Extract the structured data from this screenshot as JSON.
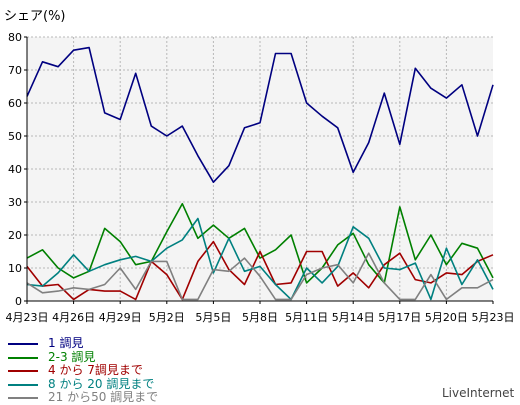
{
  "chart_data": {
    "type": "line",
    "ylabel": "シェア(%)",
    "ylim": [
      0,
      80
    ],
    "yticks": [
      0,
      10,
      20,
      30,
      40,
      50,
      60,
      70,
      80
    ],
    "x": [
      "4月23日",
      "4月24日",
      "4月25日",
      "4月26日",
      "4月27日",
      "4月28日",
      "4月29日",
      "4月30日",
      "5月1日",
      "5月2日",
      "5月3日",
      "5月4日",
      "5月5日",
      "5月6日",
      "5月7日",
      "5月8日",
      "5月9日",
      "5月10日",
      "5月11日",
      "5月12日",
      "5月13日",
      "5月14日",
      "5月15日",
      "5月16日",
      "5月17日",
      "5月18日",
      "5月19日",
      "5月20日",
      "5月21日",
      "5月22日",
      "5月23日"
    ],
    "xticks": [
      "4月23日",
      "4月26日",
      "4月29日",
      "5月2日",
      "5月5日",
      "5月8日",
      "5月11日",
      "5月14日",
      "5月17日",
      "5月20日",
      "5月23日"
    ],
    "grid": true,
    "legend_position": "bottom-left",
    "series": [
      {
        "name": "1 調見",
        "color": "#000080",
        "values": [
          62,
          72.5,
          71,
          76,
          76.8,
          57,
          55,
          69,
          53,
          50,
          53,
          44,
          36,
          41,
          52.5,
          54,
          75,
          75,
          60,
          56,
          52.5,
          39,
          48,
          63,
          47.5,
          70.5,
          64.5,
          61.5,
          65.5,
          50,
          65.5
        ]
      },
      {
        "name": "2-3 調見",
        "color": "#008000",
        "values": [
          13,
          15.5,
          10,
          7,
          9,
          22,
          18,
          11,
          12,
          21,
          29.5,
          19,
          23,
          19,
          22,
          13,
          15.5,
          20,
          5.5,
          10,
          17,
          20.5,
          11,
          5.5,
          28.5,
          12.5,
          20,
          11,
          17.5,
          16,
          7
        ]
      },
      {
        "name": "4 から 7調見まで",
        "color": "#a00000",
        "values": [
          10.5,
          4.5,
          5,
          0.5,
          3.5,
          3,
          3,
          0.5,
          12,
          8,
          0.5,
          12,
          18,
          9.5,
          5,
          15,
          5,
          5.5,
          15,
          15,
          4.5,
          8.5,
          4,
          11,
          14.5,
          6.5,
          5.5,
          8.5,
          8,
          12,
          14
        ]
      },
      {
        "name": "8 から 20 調見まで",
        "color": "#008080",
        "values": [
          5,
          4.5,
          8.5,
          14,
          9,
          11,
          12.5,
          13.5,
          12,
          16,
          18.5,
          25,
          8.5,
          19,
          9,
          10.5,
          5,
          0.5,
          10,
          5.5,
          10.5,
          22.5,
          19,
          10,
          9.5,
          11.5,
          0.5,
          16,
          5,
          12.5,
          3.5
        ]
      },
      {
        "name": "21 から50 調見まで",
        "color": "#808080",
        "values": [
          5.5,
          2.5,
          3,
          4,
          3.5,
          5,
          10,
          3.5,
          12,
          12,
          0.5,
          0.5,
          9.5,
          9,
          13,
          7.5,
          0.5,
          0.5,
          8,
          10,
          11,
          5.5,
          14.5,
          5.5,
          0.5,
          0.5,
          8,
          0.5,
          4,
          4,
          6.5
        ]
      }
    ],
    "source": "LiveInternet"
  }
}
